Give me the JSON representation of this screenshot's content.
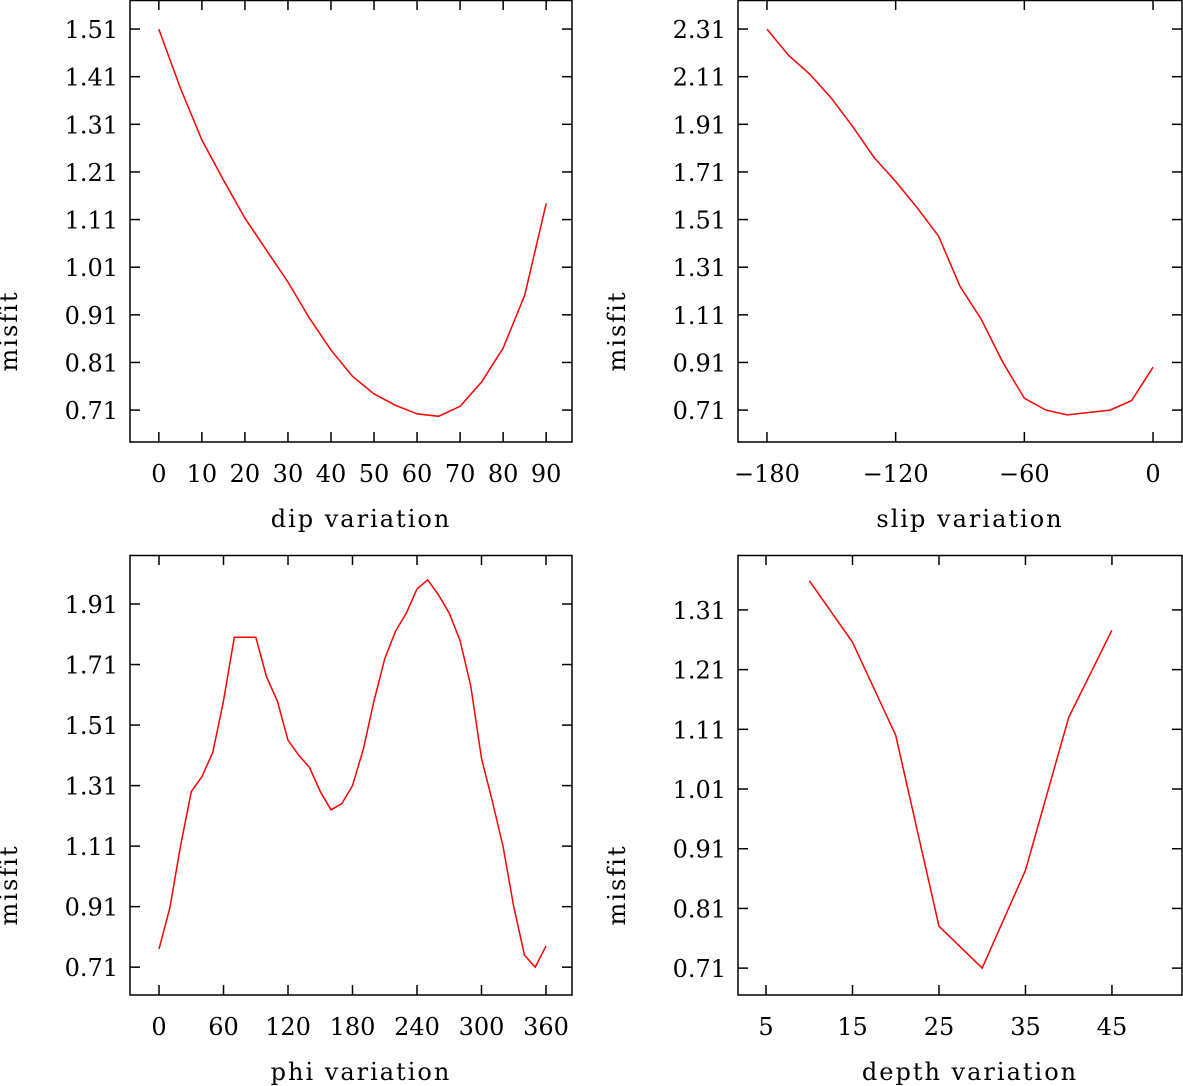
{
  "chart_data": [
    {
      "type": "line",
      "xlabel": "dip     variation",
      "ylabel": "misfit",
      "xlim": [
        -6.7,
        96
      ],
      "ylim": [
        0.643,
        1.571
      ],
      "xticks": [
        0,
        10,
        20,
        30,
        40,
        50,
        60,
        70,
        80,
        90
      ],
      "xtick_labels": [
        "0",
        "10",
        "20",
        "30",
        "40",
        "50",
        "60",
        "70",
        "80",
        "90"
      ],
      "yticks": [
        0.71,
        0.81,
        0.91,
        1.01,
        1.11,
        1.21,
        1.31,
        1.41,
        1.51
      ],
      "ytick_labels": [
        "0.71",
        "0.81",
        "0.91",
        "1.01",
        "1.11",
        "1.21",
        "1.31",
        "1.41",
        "1.51"
      ],
      "color": "#ff0000",
      "x": [
        0,
        5,
        10,
        15,
        20,
        25,
        30,
        35,
        40,
        45,
        50,
        55,
        60,
        65,
        70,
        75,
        80,
        85,
        90
      ],
      "y": [
        1.51,
        1.386,
        1.277,
        1.193,
        1.113,
        1.046,
        0.979,
        0.903,
        0.836,
        0.781,
        0.744,
        0.72,
        0.702,
        0.697,
        0.718,
        0.769,
        0.84,
        0.951,
        1.144
      ]
    },
    {
      "type": "line",
      "xlabel": "slip   variation",
      "ylabel": "misfit",
      "xlim": [
        -193.5,
        13.5
      ],
      "ylim": [
        0.576,
        2.432
      ],
      "xticks": [
        -180,
        -120,
        -60,
        0
      ],
      "xtick_labels": [
        "−180",
        "−120",
        "−60",
        "0"
      ],
      "yticks": [
        0.71,
        0.91,
        1.11,
        1.31,
        1.51,
        1.71,
        1.91,
        2.11,
        2.31
      ],
      "ytick_labels": [
        "0.71",
        "0.91",
        "1.11",
        "1.31",
        "1.51",
        "1.71",
        "1.91",
        "2.11",
        "2.31"
      ],
      "color": "#ff0000",
      "x": [
        -180,
        -170,
        -160,
        -150,
        -140,
        -130,
        -120,
        -110,
        -100,
        -90,
        -80,
        -70,
        -60,
        -50,
        -40,
        -30,
        -20,
        -10,
        0
      ],
      "y": [
        2.31,
        2.2,
        2.12,
        2.02,
        1.9,
        1.77,
        1.67,
        1.56,
        1.44,
        1.23,
        1.09,
        0.91,
        0.76,
        0.71,
        0.69,
        0.7,
        0.71,
        0.75,
        0.89
      ]
    },
    {
      "type": "line",
      "xlabel": "phi     variation",
      "ylabel": "misfit",
      "xlim": [
        -27,
        384.2
      ],
      "ylim": [
        0.618,
        2.072
      ],
      "xticks": [
        0,
        60,
        120,
        180,
        240,
        300,
        360
      ],
      "xtick_labels": [
        "0",
        "60",
        "120",
        "180",
        "240",
        "300",
        "360"
      ],
      "yticks": [
        0.71,
        0.91,
        1.11,
        1.31,
        1.51,
        1.71,
        1.91
      ],
      "ytick_labels": [
        "0.71",
        "0.91",
        "1.11",
        "1.31",
        "1.51",
        "1.71",
        "1.91"
      ],
      "color": "#ff0000",
      "x": [
        0,
        10,
        20,
        30,
        40,
        50,
        60,
        70,
        80,
        90,
        100,
        110,
        120,
        130,
        140,
        150,
        160,
        170,
        180,
        190,
        200,
        210,
        220,
        230,
        240,
        250,
        260,
        270,
        280,
        290,
        300,
        310,
        320,
        330,
        340,
        350,
        360
      ],
      "y": [
        0.77,
        0.905,
        1.11,
        1.29,
        1.34,
        1.42,
        1.59,
        1.8,
        1.8,
        1.8,
        1.67,
        1.59,
        1.46,
        1.41,
        1.37,
        1.29,
        1.23,
        1.25,
        1.31,
        1.43,
        1.59,
        1.73,
        1.82,
        1.88,
        1.96,
        1.99,
        1.94,
        1.88,
        1.79,
        1.64,
        1.4,
        1.26,
        1.11,
        0.91,
        0.75,
        0.71,
        0.78
      ]
    },
    {
      "type": "line",
      "xlabel": "depth  variation",
      "ylabel": "misfit",
      "xlim": [
        1.76,
        53.1
      ],
      "ylim": [
        0.665,
        1.402
      ],
      "xticks": [
        5,
        15,
        25,
        35,
        45
      ],
      "xtick_labels": [
        "5",
        "15",
        "25",
        "35",
        "45"
      ],
      "yticks": [
        0.71,
        0.81,
        0.91,
        1.01,
        1.11,
        1.21,
        1.31
      ],
      "ytick_labels": [
        "0.71",
        "0.81",
        "0.91",
        "1.01",
        "1.11",
        "1.21",
        "1.31"
      ],
      "color": "#ff0000",
      "x": [
        10,
        15,
        20,
        25,
        30,
        35,
        40,
        45
      ],
      "y": [
        1.359,
        1.256,
        1.1,
        0.78,
        0.71,
        0.874,
        1.13,
        1.276
      ]
    }
  ]
}
